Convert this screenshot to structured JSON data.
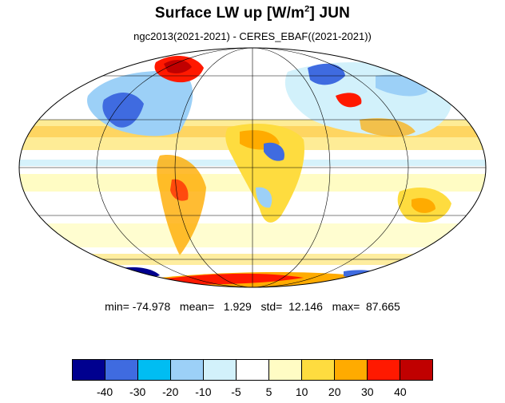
{
  "title_main": "Surface LW up [W/m",
  "title_sup": "2",
  "title_end": "]  JUN",
  "subtitle": "ngc2013(2021-2021) - CERES_EBAF((2021-2021))",
  "stats": "min= -74.978   mean=   1.929   std=  12.146   max=  87.665",
  "colorbar": {
    "colors": [
      "#00008f",
      "#3f6be0",
      "#00bdf2",
      "#9cd0f7",
      "#d2f1fb",
      "#ffffff",
      "#fffcc4",
      "#fedc3f",
      "#ffab00",
      "#ff1900",
      "#c00000"
    ],
    "ticks": [
      "-40",
      "-30",
      "-20",
      "-10",
      "-5",
      "5",
      "10",
      "20",
      "30",
      "40"
    ]
  }
}
